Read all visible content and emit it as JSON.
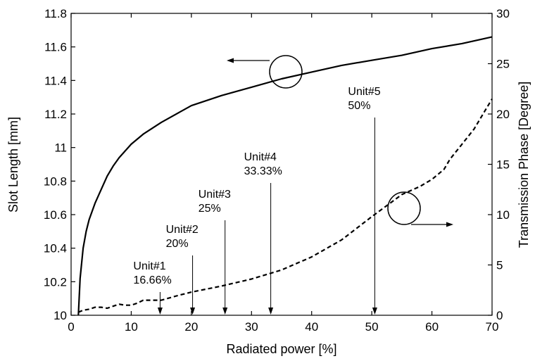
{
  "chart_data": {
    "type": "line",
    "xlabel": "Radiated power [%]",
    "ylabel_left": "Slot Length [mm]",
    "ylabel_right": "Transmission Phase [Degree]",
    "xlim": [
      0,
      70
    ],
    "ylim_left": [
      10,
      11.8
    ],
    "ylim_right": [
      0,
      30
    ],
    "x_ticks": [
      0,
      10,
      20,
      30,
      40,
      50,
      60,
      70
    ],
    "y_left_ticks": [
      "10",
      "10.2",
      "10.4",
      "10.6",
      "10.8",
      "11",
      "11.2",
      "11.4",
      "11.6",
      "11.8"
    ],
    "y_right_ticks": [
      "0",
      "5",
      "10",
      "15",
      "20",
      "25",
      "30"
    ],
    "grid": false,
    "series": [
      {
        "axis": "left",
        "style": "solid",
        "x": [
          1.2,
          1.5,
          2,
          2.5,
          3,
          4,
          5,
          6,
          7,
          8,
          10,
          12,
          15,
          18,
          20,
          25,
          30,
          35,
          40,
          45,
          50,
          55,
          60,
          65,
          70
        ],
        "y": [
          10.0,
          10.22,
          10.4,
          10.5,
          10.57,
          10.67,
          10.75,
          10.83,
          10.89,
          10.94,
          11.02,
          11.08,
          11.15,
          11.21,
          11.25,
          11.31,
          11.36,
          11.41,
          11.45,
          11.49,
          11.52,
          11.55,
          11.59,
          11.62,
          11.66
        ]
      },
      {
        "axis": "right",
        "style": "dashed",
        "x": [
          1.2,
          2,
          3,
          4,
          5,
          6,
          7,
          8,
          9,
          10,
          11,
          12,
          13,
          15,
          18,
          20,
          25,
          30,
          35,
          40,
          45,
          50,
          55,
          58,
          60,
          62,
          63,
          65,
          67,
          70
        ],
        "y": [
          0.3,
          0.5,
          0.6,
          0.8,
          0.8,
          0.7,
          0.9,
          1.1,
          1.0,
          1.0,
          1.2,
          1.5,
          1.5,
          1.5,
          2.0,
          2.3,
          2.9,
          3.6,
          4.5,
          5.8,
          7.5,
          9.8,
          12.0,
          12.8,
          13.5,
          14.5,
          15.5,
          17.0,
          18.5,
          21.5
        ]
      }
    ],
    "units": [
      {
        "name": "Unit#1",
        "value": "16.66%",
        "x": 14.8
      },
      {
        "name": "Unit#2",
        "value": "20%",
        "x": 20.2
      },
      {
        "name": "Unit#3",
        "value": "25%",
        "x": 25.6
      },
      {
        "name": "Unit#4",
        "value": "33.33%",
        "x": 33.2
      },
      {
        "name": "Unit#5",
        "value": "50%",
        "x": 50.5
      }
    ]
  }
}
